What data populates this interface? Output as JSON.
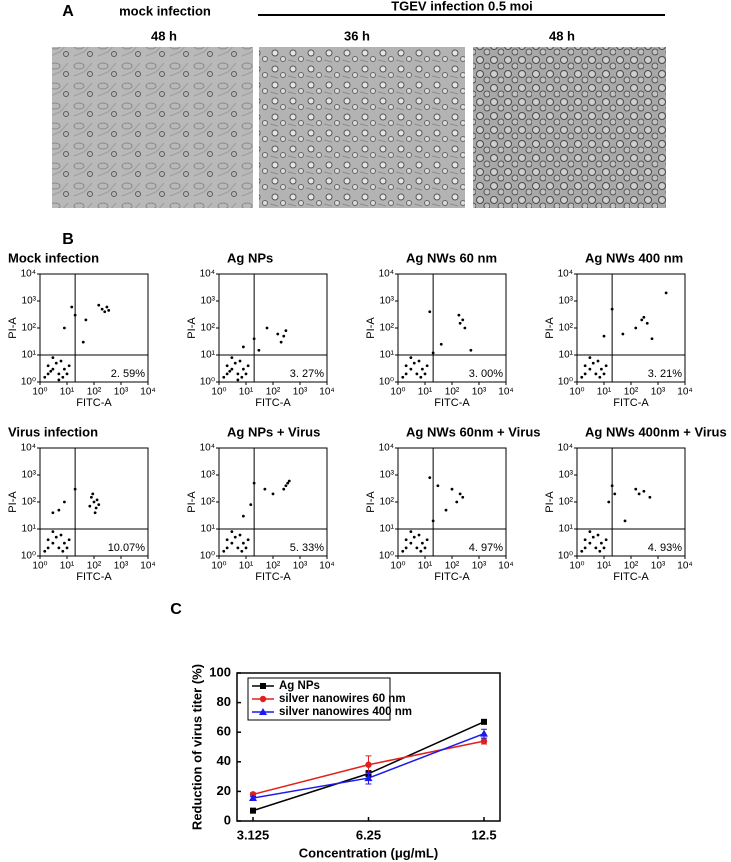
{
  "panels": {
    "a": "A",
    "b": "B",
    "c": "C"
  },
  "micrographs": {
    "group_labels": [
      "mock infection",
      "TGEV infection 0.5 moi"
    ],
    "time_labels": [
      "48 h",
      "36 h",
      "48 h"
    ]
  },
  "chart_data": [
    {
      "type": "scatter",
      "title": "Mock infection",
      "xlabel": "FITC-A",
      "ylabel": "PI-A",
      "log_scale": true,
      "xlim": [
        1,
        10000
      ],
      "ylim": [
        1,
        10000
      ],
      "xticks": [
        {
          "value": 1,
          "label": "10⁰"
        },
        {
          "value": 10,
          "label": "10¹"
        },
        {
          "value": 100,
          "label": "10²"
        },
        {
          "value": 1000,
          "label": "10³"
        },
        {
          "value": 10000,
          "label": "10⁴"
        }
      ],
      "yticks": [
        {
          "value": 1,
          "label": "10⁰"
        },
        {
          "value": 10,
          "label": "10¹"
        },
        {
          "value": 100,
          "label": "10²"
        },
        {
          "value": 1000,
          "label": "10³"
        },
        {
          "value": 10000,
          "label": "10⁴"
        }
      ],
      "gate": {
        "x": 20,
        "y": 10
      },
      "quadrant_label": "2. 59%",
      "x": [
        2,
        3,
        5,
        8,
        4,
        2,
        6,
        10,
        3,
        1.5,
        12,
        7,
        200,
        300,
        250,
        150,
        350,
        20,
        8,
        40,
        50,
        15,
        2.5,
        5
      ],
      "y": [
        2,
        3,
        2,
        3,
        5,
        4,
        6,
        2,
        8,
        1.5,
        4,
        1.5,
        500,
        600,
        400,
        700,
        450,
        300,
        100,
        30,
        200,
        600,
        2.5,
        1.2
      ]
    },
    {
      "type": "scatter",
      "title": "Ag NPs",
      "xlabel": "FITC-A",
      "ylabel": "PI-A",
      "log_scale": true,
      "xlim": [
        1,
        10000
      ],
      "ylim": [
        1,
        10000
      ],
      "xticks": [
        {
          "value": 1,
          "label": "10⁰"
        },
        {
          "value": 10,
          "label": "10¹"
        },
        {
          "value": 100,
          "label": "10²"
        },
        {
          "value": 1000,
          "label": "10³"
        },
        {
          "value": 10000,
          "label": "10⁴"
        }
      ],
      "yticks": [
        {
          "value": 1,
          "label": "10⁰"
        },
        {
          "value": 10,
          "label": "10¹"
        },
        {
          "value": 100,
          "label": "10²"
        },
        {
          "value": 1000,
          "label": "10³"
        },
        {
          "value": 10000,
          "label": "10⁴"
        }
      ],
      "gate": {
        "x": 20,
        "y": 10
      },
      "quadrant_label": "3. 27%",
      "x": [
        2,
        3,
        5,
        8,
        4,
        2,
        6,
        10,
        3,
        1.5,
        12,
        7,
        150,
        250,
        300,
        200,
        20,
        60,
        8,
        30,
        5,
        2.5
      ],
      "y": [
        2,
        3,
        2,
        3,
        5,
        4,
        6,
        2,
        8,
        1.5,
        4,
        1.5,
        60,
        50,
        80,
        30,
        40,
        100,
        20,
        15,
        1.2,
        2.5
      ]
    },
    {
      "type": "scatter",
      "title": "Ag NWs 60 nm",
      "xlabel": "FITC-A",
      "ylabel": "PI-A",
      "log_scale": true,
      "xlim": [
        1,
        10000
      ],
      "ylim": [
        1,
        10000
      ],
      "xticks": [
        {
          "value": 1,
          "label": "10⁰"
        },
        {
          "value": 10,
          "label": "10¹"
        },
        {
          "value": 100,
          "label": "10²"
        },
        {
          "value": 1000,
          "label": "10³"
        },
        {
          "value": 10000,
          "label": "10⁴"
        }
      ],
      "yticks": [
        {
          "value": 1,
          "label": "10⁰"
        },
        {
          "value": 10,
          "label": "10¹"
        },
        {
          "value": 100,
          "label": "10²"
        },
        {
          "value": 1000,
          "label": "10³"
        },
        {
          "value": 10000,
          "label": "10⁴"
        }
      ],
      "gate": {
        "x": 20,
        "y": 10
      },
      "quadrant_label": "3. 00%",
      "x": [
        2,
        3,
        5,
        8,
        4,
        2,
        6,
        10,
        3,
        1.5,
        12,
        7,
        200,
        250,
        300,
        180,
        40,
        500,
        15,
        20
      ],
      "y": [
        2,
        3,
        2,
        3,
        5,
        4,
        6,
        2,
        8,
        1.5,
        4,
        1.5,
        150,
        200,
        100,
        300,
        25,
        15,
        400,
        12
      ]
    },
    {
      "type": "scatter",
      "title": "Ag NWs 400 nm",
      "xlabel": "FITC-A",
      "ylabel": "PI-A",
      "log_scale": true,
      "xlim": [
        1,
        10000
      ],
      "ylim": [
        1,
        10000
      ],
      "xticks": [
        {
          "value": 1,
          "label": "10⁰"
        },
        {
          "value": 10,
          "label": "10¹"
        },
        {
          "value": 100,
          "label": "10²"
        },
        {
          "value": 1000,
          "label": "10³"
        },
        {
          "value": 10000,
          "label": "10⁴"
        }
      ],
      "yticks": [
        {
          "value": 1,
          "label": "10⁰"
        },
        {
          "value": 10,
          "label": "10¹"
        },
        {
          "value": 100,
          "label": "10²"
        },
        {
          "value": 1000,
          "label": "10³"
        },
        {
          "value": 10000,
          "label": "10⁴"
        }
      ],
      "gate": {
        "x": 20,
        "y": 10
      },
      "quadrant_label": "3. 21%",
      "x": [
        2,
        3,
        5,
        8,
        4,
        2,
        6,
        10,
        3,
        1.5,
        12,
        7,
        150,
        250,
        300,
        400,
        600,
        20,
        10,
        50,
        2000
      ],
      "y": [
        2,
        3,
        2,
        3,
        5,
        4,
        6,
        2,
        8,
        1.5,
        4,
        1.5,
        100,
        200,
        250,
        150,
        40,
        500,
        50,
        60,
        2000
      ]
    },
    {
      "type": "scatter",
      "title": "Virus infection",
      "xlabel": "FITC-A",
      "ylabel": "PI-A",
      "log_scale": true,
      "xlim": [
        1,
        10000
      ],
      "ylim": [
        1,
        10000
      ],
      "xticks": [
        {
          "value": 1,
          "label": "10⁰"
        },
        {
          "value": 10,
          "label": "10¹"
        },
        {
          "value": 100,
          "label": "10²"
        },
        {
          "value": 1000,
          "label": "10³"
        },
        {
          "value": 10000,
          "label": "10⁴"
        }
      ],
      "yticks": [
        {
          "value": 1,
          "label": "10⁰"
        },
        {
          "value": 10,
          "label": "10¹"
        },
        {
          "value": 100,
          "label": "10²"
        },
        {
          "value": 1000,
          "label": "10³"
        },
        {
          "value": 10000,
          "label": "10⁴"
        }
      ],
      "gate": {
        "x": 20,
        "y": 10
      },
      "quadrant_label": "10.07%",
      "x": [
        2,
        3,
        5,
        8,
        4,
        2,
        6,
        10,
        3,
        1.5,
        12,
        7,
        100,
        120,
        80,
        150,
        90,
        110,
        70,
        130,
        5,
        8,
        20,
        3
      ],
      "y": [
        2,
        3,
        2,
        3,
        5,
        4,
        6,
        2,
        8,
        1.5,
        4,
        1.5,
        100,
        60,
        150,
        80,
        200,
        40,
        70,
        120,
        50,
        100,
        300,
        40
      ]
    },
    {
      "type": "scatter",
      "title": "Ag NPs + Virus",
      "xlabel": "FITC-A",
      "ylabel": "PI-A",
      "log_scale": true,
      "xlim": [
        1,
        10000
      ],
      "ylim": [
        1,
        10000
      ],
      "xticks": [
        {
          "value": 1,
          "label": "10⁰"
        },
        {
          "value": 10,
          "label": "10¹"
        },
        {
          "value": 100,
          "label": "10²"
        },
        {
          "value": 1000,
          "label": "10³"
        },
        {
          "value": 10000,
          "label": "10⁴"
        }
      ],
      "yticks": [
        {
          "value": 1,
          "label": "10⁰"
        },
        {
          "value": 10,
          "label": "10¹"
        },
        {
          "value": 100,
          "label": "10²"
        },
        {
          "value": 1000,
          "label": "10³"
        },
        {
          "value": 10000,
          "label": "10⁴"
        }
      ],
      "gate": {
        "x": 20,
        "y": 10
      },
      "quadrant_label": "5. 33%",
      "x": [
        2,
        3,
        5,
        8,
        4,
        2,
        6,
        10,
        3,
        1.5,
        12,
        7,
        300,
        350,
        250,
        400,
        20,
        15,
        50,
        100,
        8
      ],
      "y": [
        2,
        3,
        2,
        3,
        5,
        4,
        6,
        2,
        8,
        1.5,
        4,
        1.5,
        400,
        500,
        300,
        600,
        500,
        80,
        300,
        200,
        30
      ]
    },
    {
      "type": "scatter",
      "title": "Ag NWs 60nm + Virus",
      "xlabel": "FITC-A",
      "ylabel": "PI-A",
      "log_scale": true,
      "xlim": [
        1,
        10000
      ],
      "ylim": [
        1,
        10000
      ],
      "xticks": [
        {
          "value": 1,
          "label": "10⁰"
        },
        {
          "value": 10,
          "label": "10¹"
        },
        {
          "value": 100,
          "label": "10²"
        },
        {
          "value": 1000,
          "label": "10³"
        },
        {
          "value": 10000,
          "label": "10⁴"
        }
      ],
      "yticks": [
        {
          "value": 1,
          "label": "10⁰"
        },
        {
          "value": 10,
          "label": "10¹"
        },
        {
          "value": 100,
          "label": "10²"
        },
        {
          "value": 1000,
          "label": "10³"
        },
        {
          "value": 10000,
          "label": "10⁴"
        }
      ],
      "gate": {
        "x": 20,
        "y": 10
      },
      "quadrant_label": "4. 97%",
      "x": [
        2,
        3,
        5,
        8,
        4,
        2,
        6,
        10,
        3,
        1.5,
        12,
        7,
        150,
        200,
        250,
        100,
        30,
        60,
        15,
        20
      ],
      "y": [
        2,
        3,
        2,
        3,
        5,
        4,
        6,
        2,
        8,
        1.5,
        4,
        1.5,
        100,
        200,
        150,
        300,
        400,
        50,
        800,
        20
      ]
    },
    {
      "type": "scatter",
      "title": "Ag NWs 400nm + Virus",
      "xlabel": "FITC-A",
      "ylabel": "PI-A",
      "log_scale": true,
      "xlim": [
        1,
        10000
      ],
      "ylim": [
        1,
        10000
      ],
      "xticks": [
        {
          "value": 1,
          "label": "10⁰"
        },
        {
          "value": 10,
          "label": "10¹"
        },
        {
          "value": 100,
          "label": "10²"
        },
        {
          "value": 1000,
          "label": "10³"
        },
        {
          "value": 10000,
          "label": "10⁴"
        }
      ],
      "yticks": [
        {
          "value": 1,
          "label": "10⁰"
        },
        {
          "value": 10,
          "label": "10¹"
        },
        {
          "value": 100,
          "label": "10²"
        },
        {
          "value": 1000,
          "label": "10³"
        },
        {
          "value": 10000,
          "label": "10⁴"
        }
      ],
      "gate": {
        "x": 20,
        "y": 10
      },
      "quadrant_label": "4. 93%",
      "x": [
        2,
        3,
        5,
        8,
        4,
        2,
        6,
        10,
        3,
        1.5,
        12,
        7,
        150,
        200,
        300,
        20,
        25,
        15,
        500,
        60
      ],
      "y": [
        2,
        3,
        2,
        3,
        5,
        4,
        6,
        2,
        8,
        1.5,
        4,
        1.5,
        300,
        200,
        250,
        400,
        200,
        100,
        150,
        20
      ]
    },
    {
      "type": "line",
      "xlabel": "Concentration (μg/mL)",
      "ylabel": "Reduction of virus titer (%)",
      "categories": [
        "3.125",
        "6.25",
        "12.5"
      ],
      "ylim": [
        0,
        100
      ],
      "yticks": [
        0,
        20,
        40,
        60,
        80,
        100
      ],
      "legend": "top-left",
      "series": [
        {
          "name": "Ag NPs",
          "color": "#000000",
          "marker": "square",
          "values": [
            7,
            32,
            67
          ],
          "errors": [
            1,
            2,
            1
          ]
        },
        {
          "name": "silver nanowires 60 nm",
          "color": "#e0201b",
          "marker": "circle",
          "values": [
            18,
            38,
            54
          ],
          "errors": [
            1,
            6,
            2
          ]
        },
        {
          "name": "silver nanowires 400 nm",
          "color": "#1a1aee",
          "marker": "triangle",
          "values": [
            15.5,
            29,
            59
          ],
          "errors": [
            1,
            4,
            3
          ]
        }
      ]
    }
  ]
}
